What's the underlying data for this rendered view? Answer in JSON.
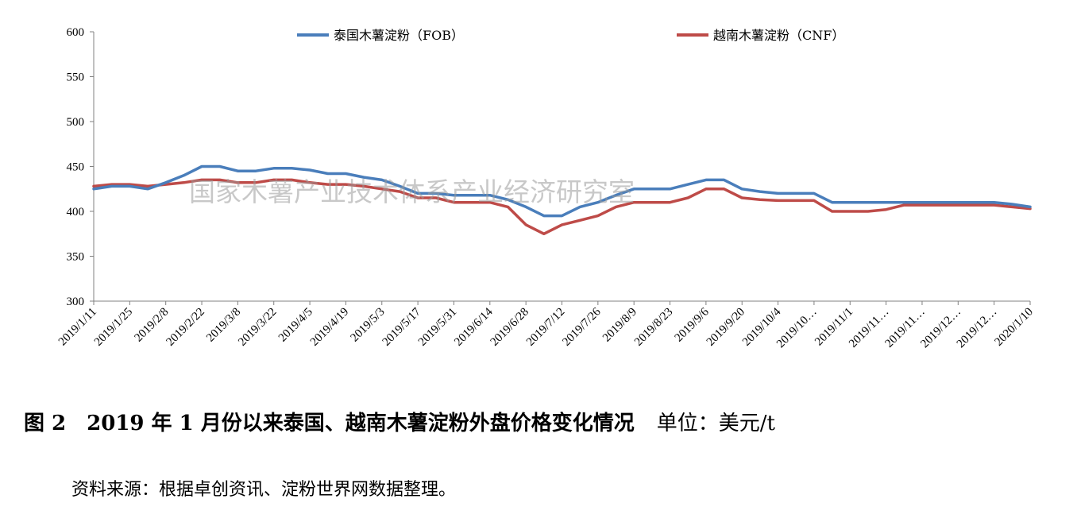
{
  "caption": {
    "figure_title": "图 2　2019 年 1 月份以来泰国、越南木薯淀粉外盘价格变化情况",
    "unit": "单位：美元/t"
  },
  "source": "资料来源：根据卓创资讯、淀粉世界网数据整理。",
  "watermark": "国家木薯产业技术体系产业经济研究室",
  "chart_data": {
    "type": "line",
    "title": "",
    "xlabel": "",
    "ylabel": "",
    "ylim": [
      300,
      600
    ],
    "yticks": [
      300,
      350,
      400,
      450,
      500,
      550,
      600
    ],
    "grid": false,
    "legend_position": "top",
    "x_tick_labels": [
      "2019/1/11",
      "2019/1/25",
      "2019/2/8",
      "2019/2/22",
      "2019/3/8",
      "2019/3/22",
      "2019/4/5",
      "2019/4/19",
      "2019/5/3",
      "2019/5/17",
      "2019/5/31",
      "2019/6/14",
      "2019/6/28",
      "2019/7/12",
      "2019/7/26",
      "2019/8/9",
      "2019/8/23",
      "2019/9/6",
      "2019/9/20",
      "2019/10/4",
      "2019/10…",
      "2019/11/1",
      "2019/11…",
      "2019/11…",
      "2019/12…",
      "2019/12…",
      "2020/1/10"
    ],
    "x": [
      "2019/1/11",
      "2019/1/18",
      "2019/1/25",
      "2019/2/1",
      "2019/2/8",
      "2019/2/15",
      "2019/2/22",
      "2019/3/1",
      "2019/3/8",
      "2019/3/15",
      "2019/3/22",
      "2019/3/29",
      "2019/4/5",
      "2019/4/12",
      "2019/4/19",
      "2019/4/26",
      "2019/5/3",
      "2019/5/10",
      "2019/5/17",
      "2019/5/24",
      "2019/5/31",
      "2019/6/7",
      "2019/6/14",
      "2019/6/21",
      "2019/6/28",
      "2019/7/5",
      "2019/7/12",
      "2019/7/19",
      "2019/7/26",
      "2019/8/2",
      "2019/8/9",
      "2019/8/16",
      "2019/8/23",
      "2019/8/30",
      "2019/9/6",
      "2019/9/13",
      "2019/9/20",
      "2019/9/27",
      "2019/10/4",
      "2019/10/11",
      "2019/10/18",
      "2019/10/25",
      "2019/11/1",
      "2019/11/8",
      "2019/11/15",
      "2019/11/22",
      "2019/11/29",
      "2019/12/6",
      "2019/12/13",
      "2019/12/20",
      "2019/12/27",
      "2020/1/3",
      "2020/1/10"
    ],
    "series": [
      {
        "name": "泰国木薯淀粉（FOB）",
        "color": "#4a7ebb",
        "values": [
          425,
          428,
          428,
          425,
          432,
          440,
          450,
          450,
          445,
          445,
          448,
          448,
          446,
          442,
          442,
          438,
          435,
          428,
          420,
          420,
          418,
          418,
          418,
          413,
          405,
          395,
          395,
          405,
          410,
          418,
          425,
          425,
          425,
          430,
          435,
          435,
          425,
          422,
          420,
          420,
          420,
          410,
          410,
          410,
          410,
          410,
          410,
          410,
          410,
          410,
          410,
          408,
          405
        ]
      },
      {
        "name": "越南木薯淀粉（CNF）",
        "color": "#be4b48",
        "values": [
          428,
          430,
          430,
          428,
          430,
          432,
          435,
          435,
          432,
          432,
          435,
          435,
          432,
          430,
          430,
          428,
          425,
          422,
          415,
          415,
          410,
          410,
          410,
          405,
          385,
          375,
          385,
          390,
          395,
          405,
          410,
          410,
          410,
          415,
          425,
          425,
          415,
          413,
          412,
          412,
          412,
          400,
          400,
          400,
          402,
          407,
          407,
          407,
          407,
          407,
          407,
          405,
          403
        ]
      }
    ]
  }
}
